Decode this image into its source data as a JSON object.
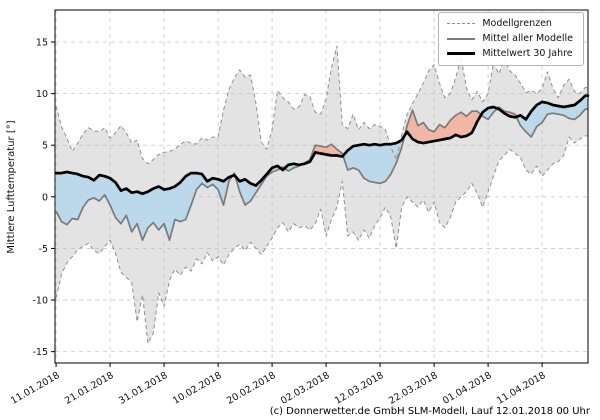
{
  "figure": {
    "ylabel": "Mittlere Lufttemperatur [°]",
    "caption": "(c) Donnerwetter.de GmbH SLM-Modell, Lauf 12.01.2018 00 Uhr"
  },
  "legend": {
    "position": "top-right",
    "items": [
      {
        "label": "Modellgrenzen",
        "style": "dashed-gray"
      },
      {
        "label": "Mittel aller Modelle",
        "style": "solid-gray"
      },
      {
        "label": "Mittelwert 30 Jahre",
        "style": "thick-black"
      }
    ]
  },
  "chart_data": {
    "type": "line",
    "title": "",
    "xlabel": "",
    "ylabel": "Mittlere Lufttemperatur [°]",
    "grid": true,
    "legend_position": "top-right",
    "xlim": [
      -0.2,
      98.5
    ],
    "ylim": [
      -16.1,
      18.1
    ],
    "y_ticks": [
      -15,
      -10,
      -5,
      0,
      5,
      10,
      15
    ],
    "x_tick_days": [
      0,
      10,
      20,
      30,
      40,
      50,
      60,
      70,
      80,
      90
    ],
    "x_tick_labels": [
      "11.01.2018",
      "21.01.2018",
      "31.01.2018",
      "10.02.2018",
      "20.02.2018",
      "02.03.2018",
      "12.03.2018",
      "22.03.2018",
      "01.04.2018",
      "11.04.2018"
    ],
    "x_unit": "days since 11.01.2018",
    "x_days": [
      0,
      1,
      2,
      3,
      4,
      5,
      6,
      7,
      8,
      9,
      10,
      11,
      12,
      13,
      14,
      15,
      16,
      17,
      18,
      19,
      20,
      21,
      22,
      23,
      24,
      25,
      26,
      27,
      28,
      29,
      30,
      31,
      32,
      33,
      34,
      35,
      36,
      37,
      38,
      39,
      40,
      41,
      42,
      43,
      44,
      45,
      46,
      47,
      48,
      49,
      50,
      51,
      52,
      53,
      54,
      55,
      56,
      57,
      58,
      59,
      60,
      61,
      62,
      63,
      64,
      65,
      66,
      67,
      68,
      69,
      70,
      71,
      72,
      73,
      74,
      75,
      76,
      77,
      78,
      79,
      80,
      81,
      82,
      83,
      84,
      85,
      86,
      87,
      88,
      89,
      90,
      91,
      92,
      93,
      94,
      95,
      96,
      97,
      98
    ],
    "series": [
      {
        "key": "upper",
        "name": "Modellgrenzen (obere Grenze)",
        "values": [
          8.8,
          6.8,
          5.7,
          4.4,
          5.2,
          6.1,
          6.7,
          6.4,
          6.3,
          6.7,
          5.7,
          6.2,
          6.9,
          6.2,
          5.2,
          5.5,
          3.7,
          3.2,
          3.6,
          4.1,
          4.3,
          4.4,
          4.6,
          5.1,
          5.4,
          5.2,
          5.1,
          5.7,
          5.5,
          5.8,
          5.8,
          8.4,
          10.4,
          11.5,
          12.3,
          11.6,
          11.8,
          9.1,
          5.3,
          4.6,
          6.5,
          10.3,
          9.6,
          9.2,
          8.5,
          8.7,
          9.9,
          9.7,
          8.2,
          8.0,
          9.5,
          12.5,
          14.6,
          7.0,
          6.6,
          8.0,
          6.5,
          7.2,
          6.6,
          7.0,
          6.8,
          6.5,
          4.8,
          3.6,
          6.0,
          8.0,
          9.0,
          10.0,
          11.0,
          12.2,
          12.8,
          11.0,
          9.6,
          10.0,
          11.5,
          13.5,
          10.5,
          9.4,
          10.2,
          9.2,
          10.0,
          13.0,
          11.9,
          13.4,
          12.2,
          11.8,
          11.0,
          10.1,
          10.3,
          10.0,
          10.5,
          12.1,
          10.5,
          9.6,
          10.8,
          11.4,
          10.2,
          10.0,
          10.6
        ]
      },
      {
        "key": "lower",
        "name": "Modellgrenzen (untere Grenze)",
        "values": [
          -9.8,
          -7.5,
          -6.4,
          -5.8,
          -5.1,
          -4.8,
          -4.5,
          -5.2,
          -5.5,
          -4.8,
          -4.2,
          -5.5,
          -7.3,
          -7.8,
          -8.3,
          -12.1,
          -9.5,
          -14.2,
          -13.2,
          -9.3,
          -10.6,
          -8.1,
          -7.0,
          -7.6,
          -6.8,
          -7.2,
          -6.0,
          -6.5,
          -5.4,
          -6.2,
          -5.8,
          -6.6,
          -5.6,
          -5.0,
          -4.6,
          -5.2,
          -4.4,
          -5.0,
          -5.6,
          -4.8,
          -4.0,
          -3.0,
          -2.5,
          -3.4,
          -2.6,
          -3.0,
          -2.8,
          -3.2,
          -2.6,
          -1.2,
          -3.8,
          -2.2,
          -1.0,
          1.5,
          -3.8,
          -3.4,
          -4.2,
          -3.2,
          -4.0,
          -2.8,
          -2.0,
          -1.0,
          -2.0,
          -5.0,
          -1.0,
          0.0,
          -0.5,
          -1.0,
          -0.3,
          -1.5,
          -0.5,
          -2.5,
          -3.0,
          -2.0,
          -0.5,
          0.0,
          0.5,
          1.3,
          0.3,
          -1.0,
          0.5,
          2.0,
          3.5,
          4.0,
          4.6,
          4.2,
          3.8,
          2.6,
          2.2,
          3.0,
          2.0,
          2.6,
          3.2,
          3.4,
          4.0,
          5.8,
          5.2,
          5.6,
          5.9
        ]
      },
      {
        "key": "mean",
        "name": "Mittel aller Modelle",
        "values": [
          -1.4,
          -2.4,
          -2.7,
          -2.1,
          -2.2,
          -1.0,
          -0.3,
          -0.1,
          -0.4,
          0.2,
          -0.8,
          -2.0,
          -2.6,
          -1.8,
          -3.4,
          -2.6,
          -4.2,
          -3.0,
          -2.5,
          -3.2,
          -2.6,
          -4.2,
          -2.2,
          -2.4,
          -2.2,
          -0.8,
          0.7,
          1.3,
          0.9,
          1.2,
          0.7,
          -0.8,
          1.5,
          2.3,
          0.5,
          -0.8,
          -0.4,
          0.4,
          1.2,
          2.0,
          2.4,
          2.6,
          2.9,
          2.5,
          2.8,
          3.0,
          3.3,
          3.6,
          5.0,
          4.9,
          4.8,
          5.1,
          4.6,
          4.2,
          2.6,
          2.8,
          2.6,
          1.8,
          1.5,
          1.4,
          1.3,
          1.5,
          2.2,
          3.3,
          4.8,
          6.9,
          8.4,
          6.9,
          7.2,
          6.5,
          6.3,
          7.0,
          6.7,
          7.4,
          7.9,
          8.2,
          7.8,
          8.3,
          8.3,
          7.8,
          7.5,
          8.2,
          8.7,
          8.3,
          8.2,
          8.0,
          6.9,
          6.3,
          5.8,
          6.8,
          7.2,
          8.0,
          8.1,
          8.0,
          7.9,
          7.6,
          7.5,
          7.9,
          8.5
        ]
      },
      {
        "key": "normal",
        "name": "Mittelwert 30 Jahre",
        "values": [
          2.3,
          2.3,
          2.4,
          2.3,
          2.2,
          2.0,
          1.9,
          1.6,
          2.1,
          2.0,
          1.8,
          1.4,
          0.6,
          0.8,
          0.4,
          0.5,
          0.3,
          0.5,
          0.8,
          1.0,
          0.7,
          0.8,
          1.0,
          1.4,
          2.0,
          2.3,
          2.3,
          2.2,
          1.5,
          1.8,
          1.7,
          1.5,
          1.9,
          2.1,
          1.5,
          1.7,
          1.3,
          1.1,
          1.6,
          2.2,
          2.8,
          3.0,
          2.6,
          3.1,
          3.2,
          3.1,
          3.2,
          3.4,
          4.3,
          4.2,
          4.1,
          4.0,
          4.0,
          3.9,
          4.5,
          4.9,
          5.0,
          5.1,
          5.0,
          5.1,
          5.0,
          5.1,
          5.1,
          5.2,
          5.5,
          6.3,
          5.6,
          5.3,
          5.2,
          5.3,
          5.4,
          5.5,
          5.6,
          5.7,
          6.0,
          5.8,
          5.9,
          6.2,
          7.3,
          8.2,
          8.6,
          8.7,
          8.5,
          8.1,
          7.8,
          7.7,
          7.9,
          7.5,
          8.3,
          8.9,
          9.2,
          9.1,
          8.9,
          8.8,
          8.7,
          8.8,
          8.9,
          9.3,
          9.8
        ]
      }
    ],
    "colors": {
      "envelope_fill": "#bdbdbd",
      "bound_line": "#8f8f8f",
      "mean_line": "#7a7a7a",
      "normal_line": "#000000",
      "colder_fill": "#b8d8ea",
      "warmer_fill": "#f2b3a3"
    }
  }
}
